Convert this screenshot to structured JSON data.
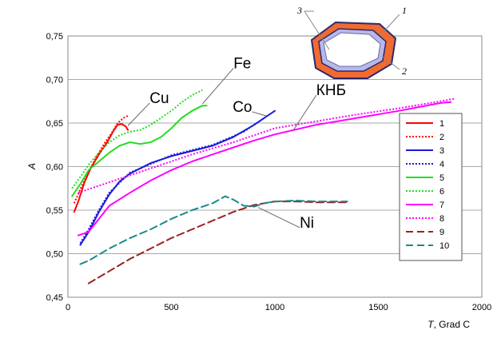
{
  "chart_data": {
    "type": "line",
    "xlabel": "T",
    "xlabel_unit": ", Grad C",
    "ylabel": "A",
    "xlim": [
      0,
      2000
    ],
    "ylim": [
      0.45,
      0.75
    ],
    "x_ticks": [
      "0",
      "500",
      "1000",
      "1500",
      "2000"
    ],
    "y_ticks": [
      "0,45",
      "0,50",
      "0,55",
      "0,60",
      "0,65",
      "0,70",
      "0,75"
    ],
    "grid": "horizontal",
    "legend_position": "right",
    "series": [
      {
        "name": "1",
        "color": "#ff0000",
        "style": "solid",
        "points": [
          [
            30,
            0.548
          ],
          [
            50,
            0.56
          ],
          [
            80,
            0.582
          ],
          [
            110,
            0.598
          ],
          [
            150,
            0.614
          ],
          [
            190,
            0.628
          ],
          [
            220,
            0.641
          ],
          [
            240,
            0.648
          ],
          [
            260,
            0.649
          ],
          [
            280,
            0.646
          ],
          [
            290,
            0.642
          ]
        ]
      },
      {
        "name": "2",
        "color": "#ff0000",
        "style": "dotted",
        "points": [
          [
            30,
            0.558
          ],
          [
            60,
            0.574
          ],
          [
            100,
            0.594
          ],
          [
            140,
            0.612
          ],
          [
            180,
            0.628
          ],
          [
            210,
            0.638
          ],
          [
            240,
            0.65
          ],
          [
            270,
            0.656
          ],
          [
            295,
            0.659
          ]
        ]
      },
      {
        "name": "3",
        "color": "#1a1adc",
        "style": "solid",
        "points": [
          [
            60,
            0.51
          ],
          [
            100,
            0.525
          ],
          [
            150,
            0.548
          ],
          [
            200,
            0.568
          ],
          [
            250,
            0.583
          ],
          [
            300,
            0.592
          ],
          [
            400,
            0.604
          ],
          [
            500,
            0.612
          ],
          [
            600,
            0.618
          ],
          [
            700,
            0.624
          ],
          [
            800,
            0.634
          ],
          [
            900,
            0.648
          ],
          [
            1000,
            0.664
          ]
        ]
      },
      {
        "name": "4",
        "color": "#1a1adc",
        "style": "dotted",
        "points": [
          [
            60,
            0.512
          ],
          [
            100,
            0.528
          ],
          [
            150,
            0.55
          ],
          [
            200,
            0.57
          ],
          [
            300,
            0.593
          ],
          [
            500,
            0.613
          ],
          [
            700,
            0.625
          ],
          [
            850,
            0.64
          ],
          [
            950,
            0.656
          ]
        ]
      },
      {
        "name": "5",
        "color": "#22dd22",
        "style": "solid",
        "points": [
          [
            20,
            0.566
          ],
          [
            60,
            0.58
          ],
          [
            100,
            0.596
          ],
          [
            150,
            0.606
          ],
          [
            200,
            0.616
          ],
          [
            250,
            0.624
          ],
          [
            300,
            0.628
          ],
          [
            350,
            0.626
          ],
          [
            400,
            0.628
          ],
          [
            450,
            0.634
          ],
          [
            500,
            0.644
          ],
          [
            550,
            0.656
          ],
          [
            600,
            0.664
          ],
          [
            650,
            0.67
          ],
          [
            670,
            0.67
          ]
        ]
      },
      {
        "name": "6",
        "color": "#22dd22",
        "style": "dotted",
        "points": [
          [
            20,
            0.575
          ],
          [
            60,
            0.588
          ],
          [
            100,
            0.602
          ],
          [
            150,
            0.616
          ],
          [
            200,
            0.628
          ],
          [
            250,
            0.636
          ],
          [
            300,
            0.64
          ],
          [
            350,
            0.642
          ],
          [
            400,
            0.648
          ],
          [
            450,
            0.656
          ],
          [
            500,
            0.664
          ],
          [
            550,
            0.674
          ],
          [
            600,
            0.682
          ],
          [
            650,
            0.688
          ]
        ]
      },
      {
        "name": "7",
        "color": "#ff00ff",
        "style": "solid",
        "points": [
          [
            50,
            0.521
          ],
          [
            100,
            0.525
          ],
          [
            150,
            0.54
          ],
          [
            200,
            0.555
          ],
          [
            300,
            0.57
          ],
          [
            400,
            0.584
          ],
          [
            500,
            0.596
          ],
          [
            600,
            0.606
          ],
          [
            700,
            0.614
          ],
          [
            800,
            0.622
          ],
          [
            900,
            0.63
          ],
          [
            1000,
            0.637
          ],
          [
            1200,
            0.648
          ],
          [
            1400,
            0.656
          ],
          [
            1600,
            0.664
          ],
          [
            1800,
            0.673
          ],
          [
            1850,
            0.674
          ]
        ]
      },
      {
        "name": "8",
        "color": "#ff00ff",
        "style": "dotted",
        "points": [
          [
            50,
            0.57
          ],
          [
            100,
            0.574
          ],
          [
            200,
            0.582
          ],
          [
            300,
            0.59
          ],
          [
            400,
            0.598
          ],
          [
            500,
            0.606
          ],
          [
            600,
            0.614
          ],
          [
            700,
            0.621
          ],
          [
            800,
            0.628
          ],
          [
            900,
            0.636
          ],
          [
            1000,
            0.644
          ],
          [
            1200,
            0.652
          ],
          [
            1400,
            0.66
          ],
          [
            1600,
            0.667
          ],
          [
            1800,
            0.675
          ],
          [
            1870,
            0.678
          ]
        ]
      },
      {
        "name": "9",
        "color": "#992222",
        "style": "dashed",
        "points": [
          [
            100,
            0.466
          ],
          [
            200,
            0.48
          ],
          [
            300,
            0.494
          ],
          [
            400,
            0.506
          ],
          [
            500,
            0.518
          ],
          [
            600,
            0.528
          ],
          [
            700,
            0.538
          ],
          [
            800,
            0.548
          ],
          [
            900,
            0.556
          ],
          [
            1000,
            0.56
          ],
          [
            1100,
            0.56
          ],
          [
            1200,
            0.559
          ],
          [
            1350,
            0.559
          ]
        ]
      },
      {
        "name": "10",
        "color": "#1a8a8a",
        "style": "dashed",
        "points": [
          [
            60,
            0.488
          ],
          [
            100,
            0.492
          ],
          [
            200,
            0.506
          ],
          [
            300,
            0.518
          ],
          [
            400,
            0.528
          ],
          [
            500,
            0.54
          ],
          [
            600,
            0.55
          ],
          [
            700,
            0.558
          ],
          [
            760,
            0.566
          ],
          [
            800,
            0.562
          ],
          [
            850,
            0.555
          ],
          [
            900,
            0.554
          ],
          [
            950,
            0.558
          ],
          [
            1000,
            0.56
          ],
          [
            1100,
            0.561
          ],
          [
            1200,
            0.56
          ],
          [
            1350,
            0.56
          ]
        ]
      }
    ],
    "annotations": [
      {
        "text": "Cu",
        "x": 395,
        "y": 0.673,
        "target": [
          290,
          0.647
        ]
      },
      {
        "text": "Fe",
        "x": 800,
        "y": 0.713,
        "target": [
          650,
          0.672
        ]
      },
      {
        "text": "Co",
        "x": 890,
        "y": 0.663,
        "target": [
          960,
          0.658
        ]
      },
      {
        "text": "КНБ",
        "x": 1200,
        "y": 0.682,
        "target": [
          1090,
          0.642
        ]
      },
      {
        "text": "Ni",
        "x": 1120,
        "y": 0.53,
        "target": [
          920,
          0.553
        ]
      }
    ]
  },
  "inset": {
    "labels": [
      "1",
      "2",
      "3"
    ],
    "colors": {
      "outer": "#f06a32",
      "middle": "#b8b8e8",
      "border": "#2a2a6a"
    }
  }
}
